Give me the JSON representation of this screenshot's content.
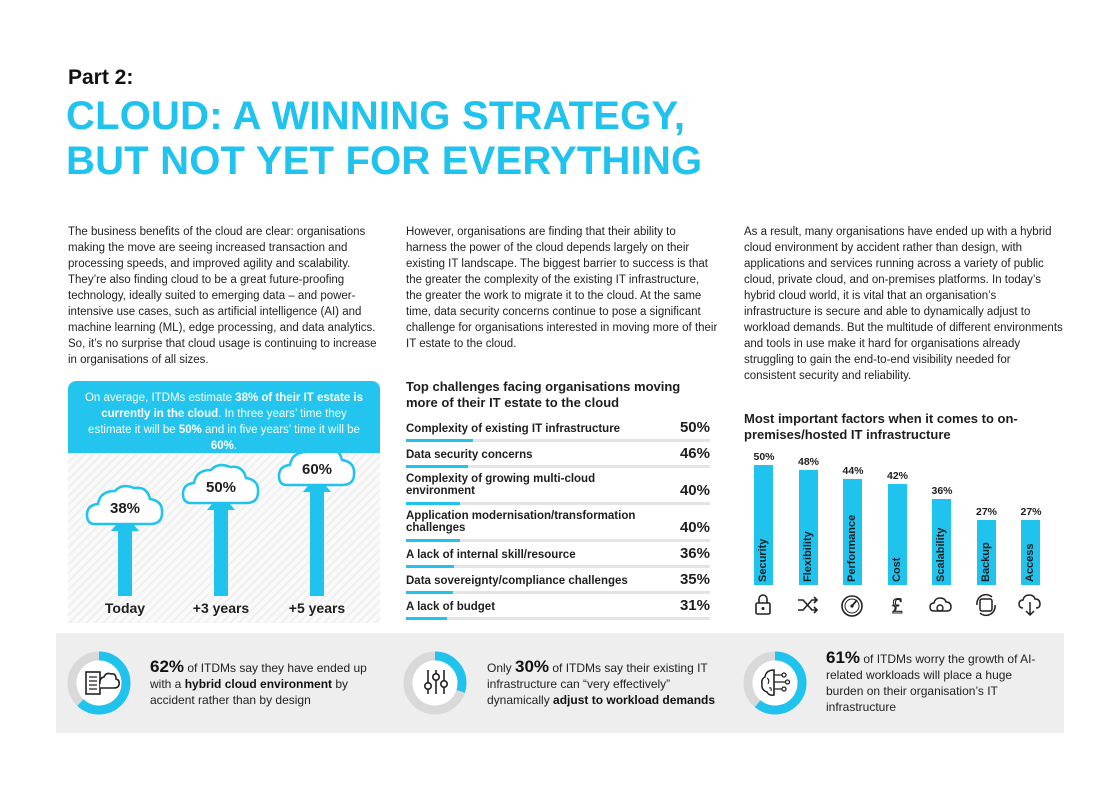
{
  "header": {
    "part": "Part 2:",
    "headline_line1": "CLOUD: A WINNING STRATEGY,",
    "headline_line2": "BUT NOT YET FOR EVERYTHING"
  },
  "columns": {
    "col1": "The business benefits of the cloud are clear: organisations making the move are seeing increased transaction and processing speeds, and improved agility and scalability. They’re also finding cloud to be a great future-proofing technology, ideally suited to emerging data – and power-intensive use cases, such as artificial intelligence (AI) and machine learning (ML), edge processing, and data analytics. So, it’s no surprise that cloud usage is continuing to increase in organisations of all sizes.",
    "col2": "However, organisations are finding that their ability to harness the power of the cloud depends largely on their existing IT landscape. The biggest barrier to success is that the greater the complexity of the existing IT infrastructure, the greater the work to migrate it to the cloud. At the same time, data security concerns continue to pose a significant challenge for organisations interested in moving more of their IT estate to the cloud.",
    "col3": "As a result, many organisations have ended up with a hybrid cloud environment by accident rather than design, with applications and services running across a variety of public cloud, private cloud, and on-premises platforms. In today’s hybrid cloud world, it is vital that an organisation’s infrastructure is secure and able to dynamically adjust to workload demands. But the multitude of different environments and tools in use make it hard for organisations already struggling to gain the end-to-end visibility needed for consistent security and reliability."
  },
  "callout": {
    "t1": "On average, ITDMs estimate ",
    "v1": "38%",
    "t2": " of their IT estate is currently in the cloud",
    "t3": ". In three years’ time they estimate it will be ",
    "v2": "50%",
    "t4": " and in five years’ time it will be ",
    "v3": "60%",
    "t5": "."
  },
  "growth": [
    {
      "value": "38%",
      "label": "Today"
    },
    {
      "value": "50%",
      "label": "+3 years"
    },
    {
      "value": "60%",
      "label": "+5 years"
    }
  ],
  "challenges": {
    "title": "Top challenges facing organisations moving more of their IT estate to the cloud",
    "items": [
      {
        "label": "Complexity of existing IT infrastructure",
        "value": "50%",
        "pct": 50
      },
      {
        "label": "Data security concerns",
        "value": "46%",
        "pct": 46
      },
      {
        "label": "Complexity of growing multi-cloud environment",
        "value": "40%",
        "pct": 40
      },
      {
        "label": "Application modernisation/transformation challenges",
        "value": "40%",
        "pct": 40
      },
      {
        "label": "A lack of internal skill/resource",
        "value": "36%",
        "pct": 36
      },
      {
        "label": "Data sovereignty/compliance challenges",
        "value": "35%",
        "pct": 35
      },
      {
        "label": "A lack of budget",
        "value": "31%",
        "pct": 31
      }
    ]
  },
  "chart_data": {
    "type": "bar",
    "title": "Most important factors when it comes to on-premises/hosted IT infrastructure",
    "categories": [
      "Security",
      "Flexibility",
      "Performance",
      "Cost",
      "Scalability",
      "Backup",
      "Access"
    ],
    "values": [
      50,
      48,
      44,
      42,
      36,
      27,
      27
    ],
    "value_labels": [
      "50%",
      "48%",
      "44%",
      "42%",
      "36%",
      "27%",
      "27%"
    ],
    "icons": [
      "padlock-icon",
      "shuffle-icon",
      "speedometer-icon",
      "pound-icon",
      "cloud-gear-icon",
      "backup-icon",
      "cloud-download-icon"
    ],
    "ylim": [
      0,
      50
    ],
    "color": "#1fc3ee"
  },
  "stats": [
    {
      "pct": "62%",
      "pre": "",
      "a": " of ITDMs say they have ended up with a ",
      "bold": "hybrid cloud environment",
      "b": " by accident rather than by design",
      "fraction": 0.62,
      "icon": "server-cloud-icon"
    },
    {
      "pct": "30%",
      "pre": "Only ",
      "a": " of ITDMs say their existing IT infrastructure can “very effectively” dynamically ",
      "bold": "adjust to workload demands",
      "b": "",
      "fraction": 0.3,
      "icon": "sliders-icon"
    },
    {
      "pct": "61%",
      "pre": "",
      "a": " of ITDMs worry the growth of AI-related workloads will place a huge burden on their organisation’s IT infrastructure",
      "bold": "",
      "b": "",
      "fraction": 0.61,
      "icon": "ai-brain-icon"
    }
  ],
  "colors": {
    "accent": "#1fc3ee",
    "text": "#1e1e1e",
    "panel": "#eeeeee"
  }
}
